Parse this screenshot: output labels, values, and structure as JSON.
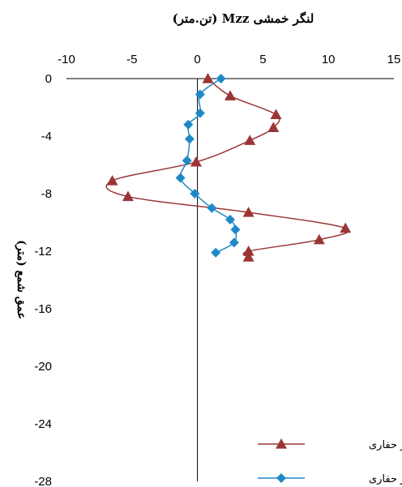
{
  "chart_data": {
    "type": "line",
    "title": "لنگر خمشی Mzz (تن.متر)",
    "xlabel": "",
    "ylabel": "عمق شمع (متر)",
    "xlim": [
      -10,
      15
    ],
    "ylim": [
      -28,
      0
    ],
    "x_ticks": [
      -10,
      -5,
      0,
      5,
      10,
      15
    ],
    "y_ticks": [
      0,
      -4,
      -8,
      -12,
      -16,
      -20,
      -24,
      -28
    ],
    "x_axis_position": "top",
    "grid": false,
    "legend_position": "bottom-right",
    "series": [
      {
        "name": "بعد از حفاری",
        "color": "#9B3535",
        "marker": "triangle",
        "points": [
          {
            "x": 0.8,
            "y": 0
          },
          {
            "x": 2.5,
            "y": -1.2
          },
          {
            "x": 6.0,
            "y": -2.5
          },
          {
            "x": 5.8,
            "y": -3.4
          },
          {
            "x": 4.0,
            "y": -4.3
          },
          {
            "x": -0.1,
            "y": -5.8
          },
          {
            "x": -6.5,
            "y": -7.1
          },
          {
            "x": -5.3,
            "y": -8.2
          },
          {
            "x": 3.9,
            "y": -9.3
          },
          {
            "x": 11.3,
            "y": -10.4
          },
          {
            "x": 9.3,
            "y": -11.2
          },
          {
            "x": 3.9,
            "y": -12.0
          },
          {
            "x": 3.9,
            "y": -12.4
          }
        ]
      },
      {
        "name": "قبل از حفاری",
        "color": "#1E88C8",
        "marker": "diamond",
        "points": [
          {
            "x": 1.8,
            "y": 0
          },
          {
            "x": 0.2,
            "y": -1.1
          },
          {
            "x": 0.2,
            "y": -2.4
          },
          {
            "x": -0.7,
            "y": -3.2
          },
          {
            "x": -0.6,
            "y": -4.2
          },
          {
            "x": -0.8,
            "y": -5.7
          },
          {
            "x": -1.3,
            "y": -6.9
          },
          {
            "x": -0.2,
            "y": -8.0
          },
          {
            "x": 1.1,
            "y": -9.0
          },
          {
            "x": 2.5,
            "y": -9.8
          },
          {
            "x": 2.9,
            "y": -10.5
          },
          {
            "x": 2.8,
            "y": -11.4
          },
          {
            "x": 1.4,
            "y": -12.1
          }
        ]
      }
    ]
  }
}
